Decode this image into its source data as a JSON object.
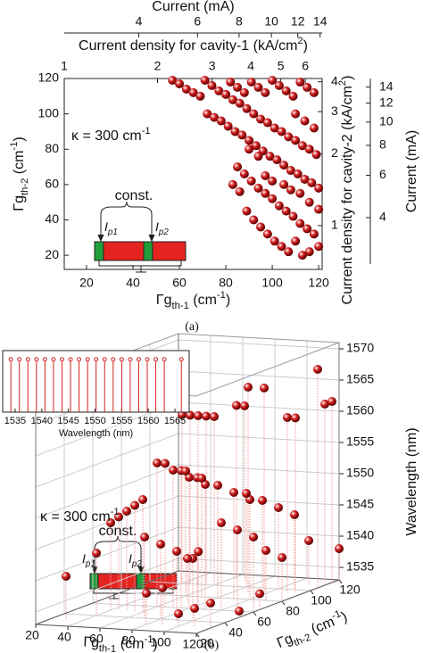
{
  "chart_data": [
    {
      "type": "scatter",
      "caption": "(a)",
      "xlabel": [
        "Γg",
        "th-1",
        " (cm",
        "-1",
        ")"
      ],
      "ylabel": [
        "Γg",
        "th-2",
        " (cm",
        "-1",
        ")"
      ],
      "xlim": [
        10.4,
        121.5
      ],
      "ylim": [
        12,
        120
      ],
      "xticks": [
        20,
        40,
        60,
        80,
        100,
        120
      ],
      "yticks": [
        20,
        40,
        60,
        80,
        100,
        120
      ],
      "color": "#d42020",
      "x": [
        57,
        60,
        63,
        66,
        69,
        71,
        74,
        77,
        80,
        83,
        86,
        89,
        92,
        95,
        98,
        101,
        104,
        107,
        110,
        113,
        116,
        119,
        72,
        75,
        78,
        81,
        84,
        87,
        90,
        93,
        96,
        99,
        102,
        105,
        108,
        111,
        114,
        117,
        120,
        82,
        85,
        88,
        91,
        94,
        97,
        100,
        103,
        106,
        109,
        112,
        115,
        118,
        85,
        88,
        91,
        94,
        97,
        100,
        103,
        106,
        109,
        112,
        115,
        118,
        89,
        92,
        95,
        98,
        101,
        104,
        107,
        83,
        86,
        90,
        94,
        110,
        114,
        118,
        112,
        116,
        120,
        105,
        108,
        97,
        100,
        116,
        120,
        110,
        113
      ],
      "y": [
        119,
        117,
        114,
        112,
        110,
        119,
        116,
        113,
        111,
        108,
        106,
        103,
        100,
        97,
        95,
        92,
        90,
        87,
        85,
        82,
        80,
        77,
        100,
        98,
        96,
        93,
        90,
        88,
        85,
        82,
        79,
        76,
        74,
        71,
        68,
        66,
        63,
        61,
        58,
        118,
        115,
        112,
        118,
        115,
        112,
        119,
        116,
        113,
        110,
        118,
        115,
        112,
        70,
        66,
        62,
        58,
        55,
        52,
        48,
        45,
        42,
        38,
        35,
        32,
        45,
        40,
        36,
        32,
        28,
        25,
        22,
        60,
        56,
        80,
        76,
        100,
        96,
        92,
        55,
        50,
        46,
        60,
        57,
        65,
        62,
        22,
        25,
        28,
        20
      ],
      "annotations": {
        "kappa": [
          "κ = 300 cm",
          "-1"
        ],
        "const": "const.",
        "ip1": [
          "I",
          "p1"
        ],
        "ip2": [
          "I",
          "p2"
        ]
      },
      "top_axes": [
        {
          "label": [
            "Current density for cavity-1 (kA/cm",
            "2",
            ")"
          ],
          "lim": [
            1,
            6.8
          ],
          "scale": "log",
          "ticks": [
            1,
            2,
            3,
            4,
            5,
            6
          ]
        },
        {
          "label": [
            "Current (mA)"
          ],
          "lim": [
            2.39,
            14.2
          ],
          "scale": "log",
          "ticks": [
            4,
            6,
            8,
            10,
            12,
            14
          ]
        }
      ],
      "right_axes": [
        {
          "label": [
            "Current density for cavity-2 (kA/cm",
            "2",
            ")"
          ],
          "lim": [
            0.655,
            4.13
          ],
          "scale": "log",
          "ticks": [
            1,
            2,
            3,
            4
          ]
        },
        {
          "label": [
            "Current (mA)"
          ],
          "lim": [
            2.56,
            15.2
          ],
          "scale": "log",
          "ticks": [
            4,
            6,
            8,
            10,
            12,
            14
          ]
        }
      ]
    },
    {
      "type": "scatter3d",
      "caption": "(b)",
      "xlabel": [
        "Γg",
        "th-1",
        " (cm",
        "-1",
        ")"
      ],
      "ylabel": [
        "Γg",
        "th-2",
        " (cm",
        "-1",
        ")"
      ],
      "zlabel": "Wavelength (nm)",
      "xlim": [
        20,
        120
      ],
      "ylim": [
        20,
        120
      ],
      "zlim": [
        1533,
        1571
      ],
      "xticks": [
        20,
        40,
        60,
        80,
        100,
        120
      ],
      "yticks": [
        20,
        40,
        60,
        80,
        100,
        120
      ],
      "zticks": [
        1535,
        1540,
        1545,
        1550,
        1555,
        1560,
        1565,
        1570
      ],
      "color": "#d42020",
      "x": [
        40,
        45,
        50,
        55,
        60,
        65,
        70,
        90,
        100,
        120,
        110,
        115,
        120,
        120,
        60,
        65,
        70,
        75,
        80,
        85,
        90,
        60,
        70,
        80,
        90,
        100,
        40,
        45,
        50,
        55,
        60,
        30,
        40,
        70,
        80,
        90,
        100,
        100,
        110,
        120,
        80,
        90,
        100,
        110,
        80,
        90,
        110,
        120,
        110,
        120,
        100,
        110,
        120,
        120,
        115,
        70,
        75
      ],
      "y": [
        100,
        100,
        100,
        100,
        100,
        110,
        110,
        90,
        90,
        105,
        95,
        95,
        110,
        115,
        60,
        60,
        60,
        60,
        60,
        60,
        60,
        80,
        80,
        80,
        80,
        80,
        50,
        50,
        50,
        50,
        50,
        30,
        40,
        40,
        40,
        40,
        40,
        60,
        60,
        60,
        100,
        100,
        100,
        100,
        30,
        30,
        80,
        80,
        110,
        120,
        30,
        30,
        30,
        50,
        70,
        70,
        72
      ],
      "z": [
        1560,
        1560,
        1560,
        1560,
        1560,
        1561,
        1561,
        1566,
        1566,
        1568,
        1561,
        1561,
        1562,
        1562,
        1556,
        1556,
        1555,
        1555,
        1554,
        1554,
        1553,
        1553,
        1552,
        1551,
        1550,
        1549,
        1547,
        1548,
        1549,
        1550,
        1551,
        1540,
        1543,
        1546,
        1545,
        1544,
        1543,
        1547,
        1546,
        1545,
        1548,
        1547,
        1546,
        1545,
        1538,
        1539,
        1541,
        1540,
        1540,
        1538,
        1535,
        1536,
        1537,
        1534,
        1535,
        1540,
        1541
      ],
      "annotations": {
        "kappa": [
          "κ = 300 cm",
          "-1"
        ],
        "const": "const.",
        "ip1": [
          "I",
          "p1"
        ],
        "ip2": [
          "I",
          "p2"
        ]
      },
      "inset": {
        "type": "stem",
        "xlabel": "Wavelength (nm)",
        "xlim": [
          1533.5,
          1567
        ],
        "ylim": [
          0,
          1.1
        ],
        "xticks": [
          1535,
          1540,
          1545,
          1550,
          1555,
          1560,
          1565
        ],
        "x": [
          1534.2,
          1535.8,
          1537.4,
          1539.0,
          1540.6,
          1542.2,
          1543.8,
          1545.4,
          1547.0,
          1548.6,
          1550.2,
          1551.8,
          1553.4,
          1555.0,
          1556.6,
          1558.2,
          1559.8,
          1561.4,
          1563.0,
          1566.2
        ],
        "values": [
          1,
          1,
          1,
          1,
          1,
          1,
          1,
          1,
          1,
          1,
          1,
          1,
          1,
          1,
          1,
          1,
          1,
          1,
          1,
          1
        ]
      }
    }
  ]
}
